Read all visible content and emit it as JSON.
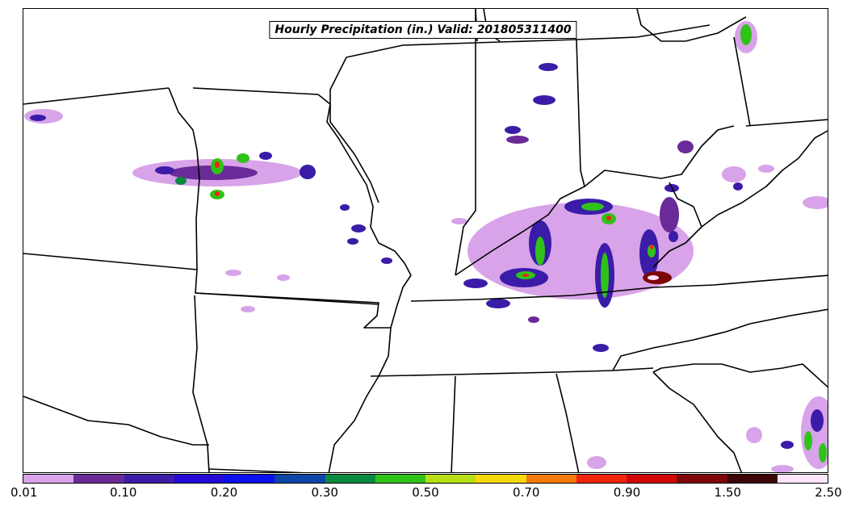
{
  "title": "Hourly Precipitation (in.) Valid: 201805311400",
  "colorbar": {
    "colors": [
      "#d8a3e8",
      "#6a2a98",
      "#3a1ca8",
      "#2308d8",
      "#0a10ee",
      "#0d46a8",
      "#0a8a40",
      "#2fc31a",
      "#b7df12",
      "#f4da0a",
      "#f67a06",
      "#f2240c",
      "#d20808",
      "#7e0606",
      "#3c0606",
      "#fde6fb"
    ],
    "tick_labels": [
      "0.01",
      "0.10",
      "0.20",
      "0.30",
      "0.50",
      "0.70",
      "0.90",
      "1.50",
      "2.50"
    ]
  }
}
